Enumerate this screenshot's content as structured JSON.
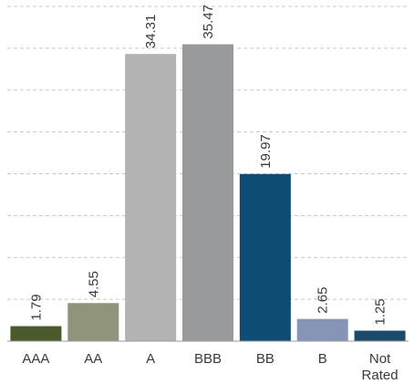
{
  "chart_data": {
    "type": "bar",
    "categories": [
      "AAA",
      "AA",
      "A",
      "BBB",
      "BB",
      "B",
      "Not Rated"
    ],
    "category_lines": [
      [
        "AAA"
      ],
      [
        "AA"
      ],
      [
        "A"
      ],
      [
        "BBB"
      ],
      [
        "BB"
      ],
      [
        "B"
      ],
      [
        "Not",
        "Rated"
      ]
    ],
    "values": [
      1.79,
      4.55,
      34.31,
      35.47,
      19.97,
      2.65,
      1.25
    ],
    "value_labels": [
      "1.79",
      "4.55",
      "34.31",
      "35.47",
      "19.97",
      "2.65",
      "1.25"
    ],
    "bar_colors": [
      "#4a5a2c",
      "#8f947a",
      "#b3b3b3",
      "#999a9b",
      "#0e4c74",
      "#8694b5",
      "#1c4a6b"
    ],
    "title": "",
    "xlabel": "",
    "ylabel": "",
    "ylim": [
      0,
      40
    ],
    "grid": true,
    "grid_style": "dashed",
    "legend": "none"
  }
}
